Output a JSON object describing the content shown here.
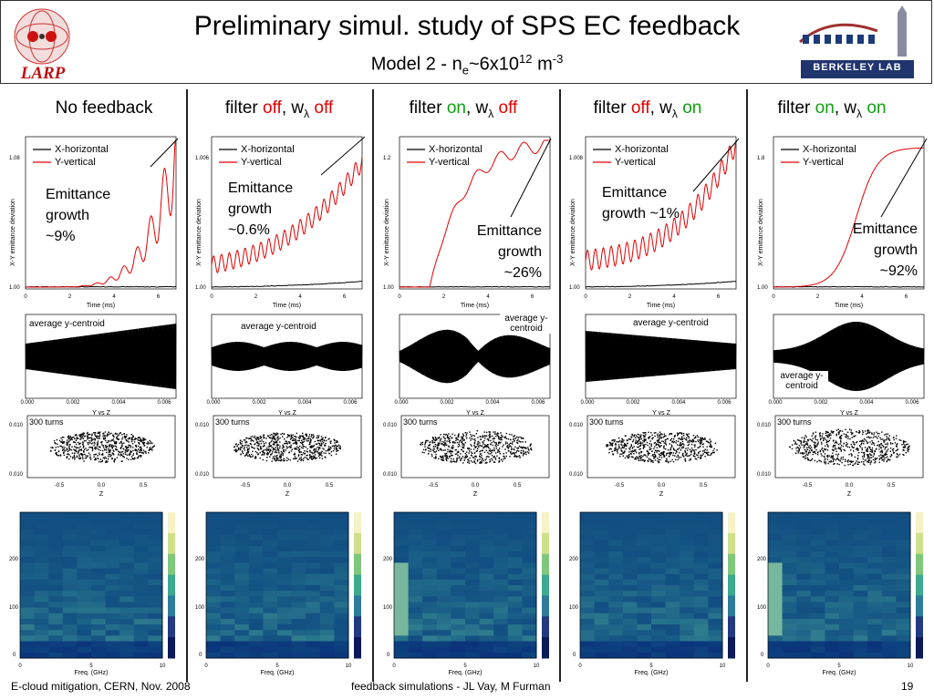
{
  "header": {
    "title": "Preliminary simul. study of SPS EC feedback",
    "subtitle_pre": "Model 2 - n",
    "subtitle_sub": "e",
    "subtitle_mid": "~6x10",
    "subtitle_sup": "12",
    "subtitle_unit": " m",
    "subtitle_unit_sup": "-3",
    "logo_left": "LARP",
    "logo_right": "BERKELEY LAB"
  },
  "columns": [
    {
      "head_a": "No feedback",
      "head_b": "",
      "head_c": "",
      "head_d": "",
      "growth_label": "Emittance growth ~9%",
      "growth_a": "Emittance",
      "growth_b": "growth",
      "growth_c": "~9%",
      "y_top": "1.08",
      "centroid_label": "average y-centroid",
      "turns": "300 turns"
    },
    {
      "head_a": "filter ",
      "head_b": "off",
      "head_c": ", w",
      "head_d": "off",
      "growth_a": "Emittance",
      "growth_b": "growth",
      "growth_c": "~0.6%",
      "y_top": "1.006",
      "centroid_label": "average y-centroid",
      "turns": "300 turns"
    },
    {
      "head_a": "filter ",
      "head_b": "on",
      "head_c": ", w",
      "head_d": "off",
      "growth_a": "Emittance",
      "growth_b": "growth",
      "growth_c": "~26%",
      "y_top": "1.2",
      "centroid_label": "average y-centroid",
      "turns": "300 turns"
    },
    {
      "head_a": "filter ",
      "head_b": "off",
      "head_c": ", w",
      "head_d": "on",
      "growth_a": "Emittance",
      "growth_b": "growth ~1%",
      "growth_c": "",
      "y_top": "1.008",
      "centroid_label": "average y-centroid",
      "turns": "300 turns"
    },
    {
      "head_a": "filter ",
      "head_b": "on",
      "head_c": ", w",
      "head_d": "on",
      "growth_a": "Emittance",
      "growth_b": "growth",
      "growth_c": "~92%",
      "y_top": "1.8",
      "centroid_label": "average y-centroid",
      "turns": "300 turns"
    }
  ],
  "plot_text": {
    "legend_x": "X-horizontal",
    "legend_y": "Y-vertical",
    "time_label": "Time (ms)",
    "ylabel_emit": "X-Y emittance deviation",
    "yvsz": "Y vs Z",
    "z_label": "Z",
    "y_label": "Y",
    "freq_label": "Freq. (GHz)",
    "turn_label": "turn",
    "lambda": "λ"
  },
  "footer": {
    "left": "E-cloud mitigation, CERN, Nov. 2008",
    "center": "feedback simulations - JL Vay, M Furman",
    "page": "19"
  },
  "colors": {
    "red": "#e00000",
    "green": "#10a010",
    "xline": "#000000"
  }
}
